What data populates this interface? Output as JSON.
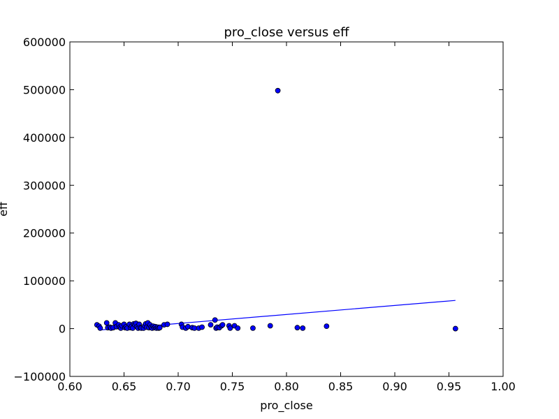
{
  "chart_data": {
    "type": "scatter",
    "title": "pro_close versus eff",
    "xlabel": "pro_close",
    "ylabel": "eff",
    "xlim": [
      0.6,
      1.0
    ],
    "ylim": [
      -100000,
      600000
    ],
    "xticks": [
      0.6,
      0.65,
      0.7,
      0.75,
      0.8,
      0.85,
      0.9,
      0.95,
      1.0
    ],
    "xtick_labels": [
      "0.60",
      "0.65",
      "0.70",
      "0.75",
      "0.80",
      "0.85",
      "0.90",
      "0.95",
      "1.00"
    ],
    "yticks": [
      -100000,
      0,
      100000,
      200000,
      300000,
      400000,
      500000,
      600000
    ],
    "ytick_labels": [
      "−100000",
      "0",
      "100000",
      "200000",
      "300000",
      "400000",
      "500000",
      "600000"
    ],
    "grid": false,
    "colors": {
      "marker": "#0000ff",
      "marker_edge": "#000000",
      "line": "#0000ff"
    },
    "series": [
      {
        "kind": "points",
        "x": [
          0.625,
          0.627,
          0.628,
          0.634,
          0.635,
          0.637,
          0.638,
          0.64,
          0.642,
          0.643,
          0.645,
          0.646,
          0.647,
          0.648,
          0.65,
          0.651,
          0.652,
          0.653,
          0.655,
          0.656,
          0.657,
          0.658,
          0.659,
          0.66,
          0.661,
          0.662,
          0.663,
          0.664,
          0.665,
          0.666,
          0.668,
          0.669,
          0.67,
          0.671,
          0.672,
          0.673,
          0.674,
          0.675,
          0.676,
          0.677,
          0.678,
          0.679,
          0.68,
          0.681,
          0.682,
          0.683,
          0.687,
          0.69,
          0.703,
          0.704,
          0.707,
          0.709,
          0.713,
          0.715,
          0.719,
          0.722,
          0.73,
          0.734,
          0.735,
          0.736,
          0.738,
          0.74,
          0.741,
          0.747,
          0.748,
          0.752,
          0.755,
          0.769,
          0.785,
          0.792,
          0.81,
          0.815,
          0.837,
          0.956
        ],
        "y": [
          8000,
          5000,
          1000,
          12000,
          2000,
          3000,
          1000,
          2000,
          12000,
          4000,
          8000,
          3000,
          1000,
          6000,
          9000,
          2000,
          4000,
          1000,
          9000,
          2000,
          5000,
          1000,
          10000,
          8000,
          11000,
          4000,
          1000,
          9000,
          2000,
          1000,
          1000,
          6000,
          10000,
          3000,
          12000,
          2000,
          8000,
          3000,
          1000,
          5000,
          2000,
          4000,
          1000,
          3000,
          1000,
          2000,
          8000,
          9000,
          9000,
          3000,
          1000,
          4000,
          2000,
          1000,
          1000,
          3000,
          8000,
          18000,
          1000,
          3000,
          2000,
          6000,
          8000,
          6000,
          1000,
          6000,
          1000,
          1000,
          6000,
          498000,
          2000,
          1000,
          5000,
          0
        ]
      },
      {
        "kind": "line",
        "x": [
          0.627,
          0.956
        ],
        "y": [
          -3000,
          59000
        ]
      }
    ]
  }
}
